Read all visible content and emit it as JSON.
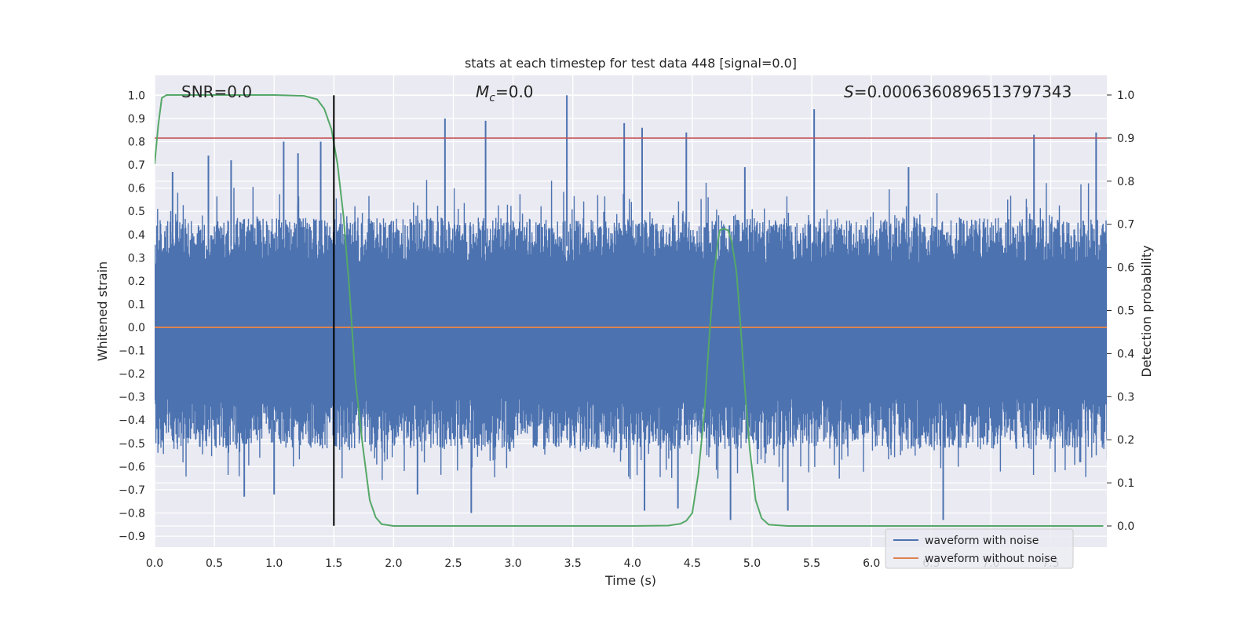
{
  "chart_data": {
    "type": "line",
    "title": "stats at each timestep for test data 448 [signal=0.0]",
    "xlabel": "Time (s)",
    "ylabel": "Whitened strain",
    "y2label": "Detection probability",
    "xlim": [
      0.0,
      7.99
    ],
    "ylim": [
      -0.95,
      1.09
    ],
    "y2lim": [
      -0.045,
      1.04
    ],
    "xticks": [
      "0.0",
      "0.5",
      "1.0",
      "1.5",
      "2.0",
      "2.5",
      "3.0",
      "3.5",
      "4.0",
      "4.5",
      "5.0",
      "5.5",
      "6.0",
      "6.5",
      "7.0",
      "7.5"
    ],
    "yticks": [
      "1.0",
      "0.9",
      "0.8",
      "0.7",
      "0.6",
      "0.5",
      "0.4",
      "0.3",
      "0.2",
      "0.1",
      "0.0",
      "-0.1",
      "-0.2",
      "-0.3",
      "-0.4",
      "-0.5",
      "-0.6",
      "-0.7",
      "-0.8",
      "-0.9"
    ],
    "y2ticks": [
      "1.0",
      "0.9",
      "0.8",
      "0.7",
      "0.6",
      "0.5",
      "0.4",
      "0.3",
      "0.2",
      "0.1",
      "0.0"
    ],
    "annotations": {
      "snr": "SNR=0.0",
      "mc_symbol": "M",
      "mc_sub": "c",
      "mc_value": "=0.0",
      "s_symbol": "S",
      "s_value": "=0.0006360896513797343"
    },
    "series": [
      {
        "name": "waveform with noise",
        "color": "#4c72b0",
        "axis": "left",
        "envelope_upper_base": 0.45,
        "envelope_lower_base": -0.5,
        "spike_peaks": [
          {
            "x": 0.15,
            "y": 0.67
          },
          {
            "x": 0.45,
            "y": 0.74
          },
          {
            "x": 0.64,
            "y": 0.72
          },
          {
            "x": 1.08,
            "y": 0.8
          },
          {
            "x": 1.2,
            "y": 0.75
          },
          {
            "x": 1.39,
            "y": 0.8
          },
          {
            "x": 2.43,
            "y": 0.9
          },
          {
            "x": 2.77,
            "y": 0.89
          },
          {
            "x": 3.45,
            "y": 1.0
          },
          {
            "x": 3.93,
            "y": 0.88
          },
          {
            "x": 4.08,
            "y": 0.86
          },
          {
            "x": 4.45,
            "y": 0.84
          },
          {
            "x": 4.94,
            "y": 0.69
          },
          {
            "x": 5.52,
            "y": 0.94
          },
          {
            "x": 6.31,
            "y": 0.69
          },
          {
            "x": 7.36,
            "y": 0.83
          },
          {
            "x": 7.88,
            "y": 0.84
          }
        ],
        "dip_troughs": [
          {
            "x": 0.75,
            "y": -0.73
          },
          {
            "x": 1.0,
            "y": -0.72
          },
          {
            "x": 2.2,
            "y": -0.72
          },
          {
            "x": 2.65,
            "y": -0.8
          },
          {
            "x": 4.1,
            "y": -0.79
          },
          {
            "x": 4.38,
            "y": -0.78
          },
          {
            "x": 4.82,
            "y": -0.83
          },
          {
            "x": 5.3,
            "y": -0.79
          },
          {
            "x": 6.6,
            "y": -0.83
          }
        ]
      },
      {
        "name": "waveform without noise",
        "color": "#dd8452",
        "axis": "left",
        "x": [
          0.0,
          7.99
        ],
        "y": [
          0.0,
          0.0
        ]
      },
      {
        "name": "detection probability",
        "color": "#55a868",
        "axis": "right",
        "x": [
          0.0,
          0.03,
          0.06,
          0.1,
          0.15,
          0.3,
          0.6,
          1.0,
          1.25,
          1.36,
          1.42,
          1.48,
          1.53,
          1.58,
          1.63,
          1.68,
          1.74,
          1.8,
          1.85,
          1.9,
          2.0,
          2.5,
          3.0,
          3.5,
          4.0,
          4.3,
          4.4,
          4.45,
          4.5,
          4.55,
          4.6,
          4.64,
          4.68,
          4.71,
          4.73,
          4.76,
          4.8,
          4.83,
          4.87,
          4.9,
          4.94,
          4.98,
          5.03,
          5.08,
          5.14,
          5.3,
          6.0,
          7.0,
          7.94
        ],
        "y": [
          0.84,
          0.93,
          0.993,
          1.0,
          1.0,
          1.0,
          1.0,
          1.0,
          0.998,
          0.99,
          0.968,
          0.92,
          0.84,
          0.72,
          0.55,
          0.34,
          0.19,
          0.06,
          0.02,
          0.004,
          0.0,
          0.0,
          0.0,
          0.0,
          0.0,
          0.001,
          0.005,
          0.012,
          0.03,
          0.12,
          0.26,
          0.43,
          0.58,
          0.65,
          0.686,
          0.69,
          0.686,
          0.66,
          0.59,
          0.48,
          0.32,
          0.18,
          0.06,
          0.018,
          0.003,
          0.0,
          0.0,
          0.0,
          0.0
        ]
      }
    ],
    "threshold": {
      "axis": "right",
      "value": 0.9,
      "color": "#c44e52"
    },
    "marker_line": {
      "x": 1.5,
      "from": -0.855,
      "to": 1.0,
      "color": "#000000"
    },
    "legend": {
      "location": "lower-right",
      "entries": [
        {
          "label": "waveform with noise",
          "color": "#4c72b0"
        },
        {
          "label": "waveform without noise",
          "color": "#dd8452"
        }
      ]
    },
    "grid": true
  }
}
